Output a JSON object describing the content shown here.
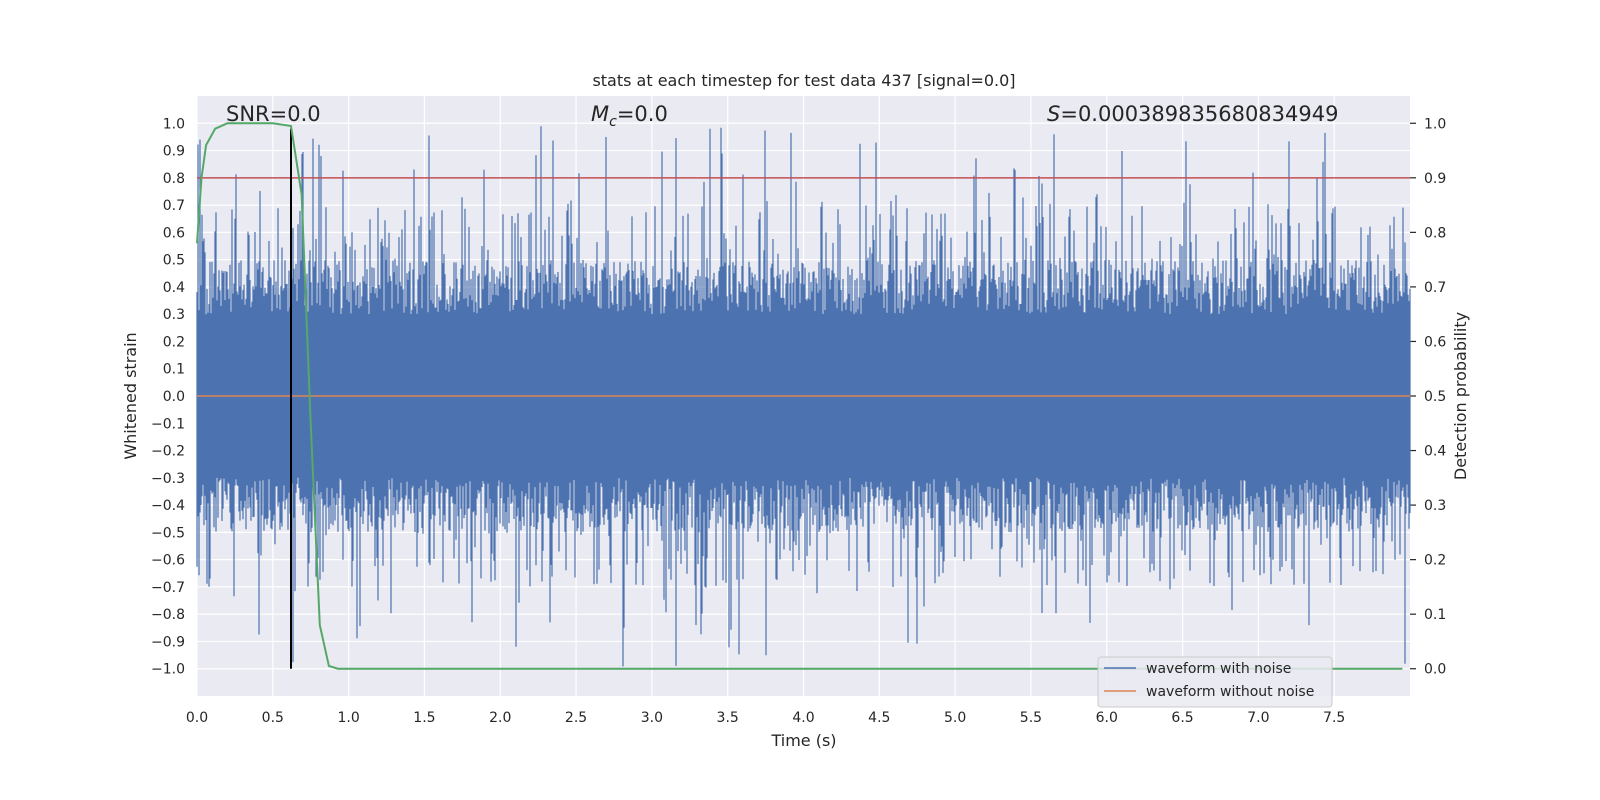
{
  "chart_data": {
    "type": "line",
    "title": "stats at each timestep for test data 437 [signal=0.0]",
    "xlabel": "Time (s)",
    "ylabel": "Whitened strain",
    "ylabel_right": "Detection probability",
    "xlim": [
      0.0,
      8.0
    ],
    "ylim": [
      -1.1,
      1.1
    ],
    "ylim_right": [
      -0.05,
      1.05
    ],
    "x_ticks": [
      "0.0",
      "0.5",
      "1.0",
      "1.5",
      "2.0",
      "2.5",
      "3.0",
      "3.5",
      "4.0",
      "4.5",
      "5.0",
      "5.5",
      "6.0",
      "6.5",
      "7.0",
      "7.5"
    ],
    "y_ticks": [
      "1.0",
      "0.9",
      "0.8",
      "0.7",
      "0.6",
      "0.5",
      "0.4",
      "0.3",
      "0.2",
      "0.1",
      "0.0",
      "−0.1",
      "−0.2",
      "−0.3",
      "−0.4",
      "−0.5",
      "−0.6",
      "−0.7",
      "−0.8",
      "−0.9",
      "−1.0"
    ],
    "y_ticks_right": [
      "1.0",
      "0.9",
      "0.8",
      "0.7",
      "0.6",
      "0.5",
      "0.4",
      "0.3",
      "0.2",
      "0.1",
      "0.0"
    ],
    "grid": true,
    "annotations": {
      "snr": "SNR=0.0",
      "mc_symbol": "M",
      "mc_sub": "c",
      "mc_value": "=0.0",
      "s_symbol": "S",
      "s_value": "=0.000389835680834949"
    },
    "legend": {
      "placement": "lower-right",
      "entries": [
        {
          "label": "waveform with noise",
          "color": "#4c72b0"
        },
        {
          "label": "waveform without noise",
          "color": "#dd8452"
        }
      ]
    },
    "series": [
      {
        "name": "waveform with noise",
        "color": "#4c72b0",
        "kind": "noise",
        "seed": 437,
        "band_min": 0.3,
        "band_max": 0.5,
        "peak_max": 0.99,
        "trough_min": -1.02
      },
      {
        "name": "waveform without noise",
        "color": "#dd8452",
        "kind": "constant",
        "value": 0.0
      },
      {
        "name": "detection probability",
        "axis": "right",
        "color": "#55a868",
        "x": [
          0.0,
          0.03,
          0.06,
          0.12,
          0.2,
          0.3,
          0.4,
          0.5,
          0.62,
          0.69,
          0.75,
          0.81,
          0.87,
          0.93,
          1.0,
          2.0,
          3.0,
          4.0,
          5.0,
          6.0,
          7.0,
          7.95
        ],
        "y": [
          0.78,
          0.9,
          0.96,
          0.99,
          1.0,
          1.0,
          1.0,
          1.0,
          0.995,
          0.87,
          0.45,
          0.08,
          0.005,
          0.0,
          0.0,
          0.0,
          0.0,
          0.0,
          0.0,
          0.0,
          0.0,
          0.0
        ]
      },
      {
        "name": "threshold",
        "axis": "right",
        "color": "#c44e52",
        "kind": "hline",
        "value": 0.9
      },
      {
        "name": "detection time",
        "color": "#000000",
        "kind": "vline",
        "x": 0.62,
        "y_range": [
          -1.0,
          0.98
        ]
      }
    ]
  }
}
